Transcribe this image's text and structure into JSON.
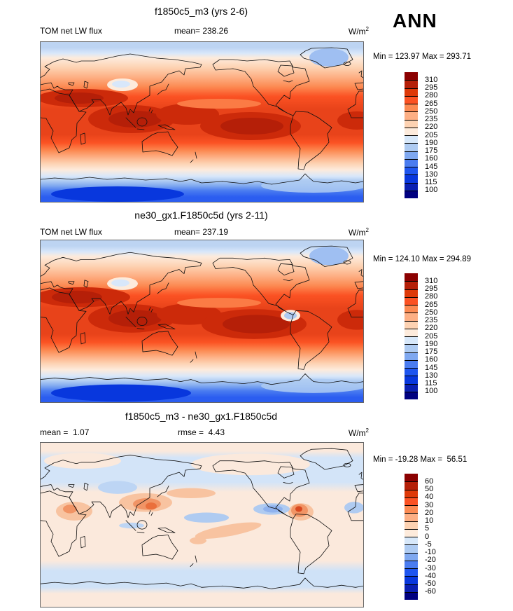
{
  "season": "ANN",
  "palette": [
    "#8B0000",
    "#B51F08",
    "#DE3908",
    "#FB5223",
    "#FC8A52",
    "#FDAF84",
    "#FDD2B2",
    "#FDEBDC",
    "#D7E8FA",
    "#AECBF2",
    "#7FA8F0",
    "#4A7CF0",
    "#1E55EF",
    "#0837DD",
    "#0A1FB2",
    "#000080"
  ],
  "panels": [
    {
      "title": "f1850c5_m3 (yrs 2-6)",
      "left_label": "TOM net LW flux",
      "center_label": "mean= 238.26",
      "unit_base": "W/m",
      "unit_exp": "2",
      "minmax": "Min = 123.97 Max = 293.71",
      "ticks": [
        "310",
        "295",
        "280",
        "265",
        "250",
        "235",
        "220",
        "205",
        "190",
        "175",
        "160",
        "145",
        "130",
        "115",
        "100"
      ]
    },
    {
      "title": "ne30_gx1.F1850c5d (yrs 2-11)",
      "left_label": "TOM net LW flux",
      "center_label": "mean= 237.19",
      "unit_base": "W/m",
      "unit_exp": "2",
      "minmax": "Min = 124.10 Max = 294.89",
      "ticks": [
        "310",
        "295",
        "280",
        "265",
        "250",
        "235",
        "220",
        "205",
        "190",
        "175",
        "160",
        "145",
        "130",
        "115",
        "100"
      ]
    },
    {
      "title": "f1850c5_m3 - ne30_gx1.F1850c5d",
      "left_label": "mean =  1.07",
      "center_label": "rmse =  4.43",
      "unit_base": "W/m",
      "unit_exp": "2",
      "minmax": "Min = -19.28 Max =  56.51",
      "ticks": [
        "60",
        "50",
        "40",
        "30",
        "20",
        "10",
        "5",
        "0",
        "-5",
        "-10",
        "-20",
        "-30",
        "-40",
        "-50",
        "-60"
      ]
    }
  ],
  "chart_data": [
    {
      "type": "heatmap",
      "title": "f1850c5_m3 (yrs 2-6)",
      "variable": "TOM net LW flux",
      "units": "W/m2",
      "season": "ANN",
      "projection": "global lat-lon, longitudes 0-360E",
      "stats": {
        "mean": 238.26,
        "min": 123.97,
        "max": 293.71
      },
      "contour_levels": [
        100,
        115,
        130,
        145,
        160,
        175,
        190,
        205,
        220,
        235,
        250,
        265,
        280,
        295,
        310
      ],
      "legend_position": "right",
      "colormap": "blue-white-red diverging, 16 classes"
    },
    {
      "type": "heatmap",
      "title": "ne30_gx1.F1850c5d (yrs 2-11)",
      "variable": "TOM net LW flux",
      "units": "W/m2",
      "season": "ANN",
      "projection": "global lat-lon, longitudes 0-360E",
      "stats": {
        "mean": 237.19,
        "min": 124.1,
        "max": 294.89
      },
      "contour_levels": [
        100,
        115,
        130,
        145,
        160,
        175,
        190,
        205,
        220,
        235,
        250,
        265,
        280,
        295,
        310
      ],
      "legend_position": "right",
      "colormap": "blue-white-red diverging, 16 classes"
    },
    {
      "type": "heatmap",
      "title": "f1850c5_m3 - ne30_gx1.F1850c5d (difference)",
      "variable": "TOM net LW flux difference",
      "units": "W/m2",
      "season": "ANN",
      "projection": "global lat-lon, longitudes 0-360E",
      "stats": {
        "mean": 1.07,
        "rmse": 4.43,
        "min": -19.28,
        "max": 56.51
      },
      "contour_levels": [
        -60,
        -50,
        -40,
        -30,
        -20,
        -10,
        -5,
        0,
        5,
        10,
        20,
        30,
        40,
        50,
        60
      ],
      "legend_position": "right",
      "colormap": "blue-white-red diverging, 16 classes"
    }
  ]
}
